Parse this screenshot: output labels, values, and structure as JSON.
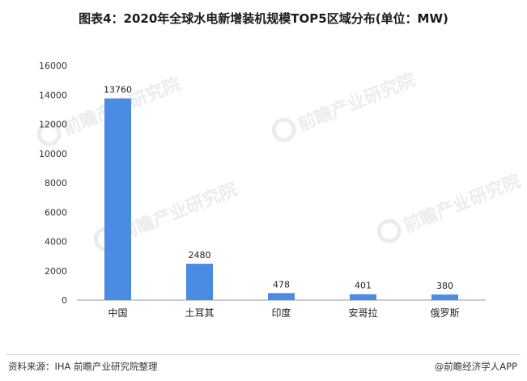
{
  "title": "图表4：2020年全球水电新增装机规模TOP5区域分布(单位：MW)",
  "source": "资料来源：IHA 前瞻产业研究院整理",
  "brand": "@前瞻经济学人APP",
  "watermark": "前瞻产业研究院",
  "colors": {
    "bar": "#4a8be3",
    "axis": "#999999",
    "text": "#222222"
  },
  "chart_data": {
    "type": "bar",
    "title": "图表4：2020年全球水电新增装机规模TOP5区域分布(单位：MW)",
    "categories": [
      "中国",
      "土耳其",
      "印度",
      "安哥拉",
      "俄罗斯"
    ],
    "values": [
      13760,
      2480,
      478,
      401,
      380
    ],
    "yticks": [
      0,
      2000,
      4000,
      6000,
      8000,
      10000,
      12000,
      14000,
      16000
    ],
    "ylim": [
      0,
      16000
    ],
    "xlabel": "",
    "ylabel": "",
    "grid": false,
    "data_labels": true
  }
}
